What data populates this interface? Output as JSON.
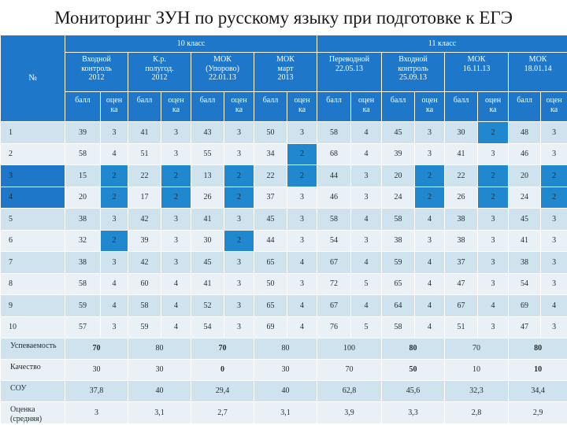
{
  "title": "Мониторинг ЗУН по русскому языку при подготовке к ЕГЭ",
  "header": {
    "number_label": "№",
    "class10": "10 класс",
    "class11": "11 класс",
    "tests": [
      {
        "lines": [
          "Входной",
          "контроль",
          "2012"
        ]
      },
      {
        "lines": [
          "К.р.",
          "полугод.",
          "2012"
        ]
      },
      {
        "lines": [
          "МОК",
          "(Упорово)",
          "22.01.13"
        ]
      },
      {
        "lines": [
          "МОК",
          "март",
          "2013"
        ]
      },
      {
        "lines": [
          "Переводной",
          "22.05.13"
        ]
      },
      {
        "lines": [
          "Входной",
          "контроль",
          "25.09.13"
        ]
      },
      {
        "lines": [
          "МОК",
          "16.11.13"
        ]
      },
      {
        "lines": [
          "МОК",
          "18.01.14"
        ]
      }
    ],
    "sub_ball": "балл",
    "sub_grade": [
      "оцен",
      "ка"
    ]
  },
  "rows": [
    {
      "num": "1",
      "cells": [
        "39",
        "3",
        "41",
        "3",
        "43",
        "3",
        "50",
        "3",
        "58",
        "4",
        "45",
        "3",
        "30",
        "2",
        "48",
        "3"
      ]
    },
    {
      "num": "2",
      "cells": [
        "58",
        "4",
        "51",
        "3",
        "55",
        "3",
        "34",
        "2",
        "68",
        "4",
        "39",
        "3",
        "41",
        "3",
        "46",
        "3"
      ]
    },
    {
      "num": "3",
      "cells": [
        "15",
        "2",
        "22",
        "2",
        "13",
        "2",
        "22",
        "2",
        "44",
        "3",
        "20",
        "2",
        "22",
        "2",
        "20",
        "2"
      ]
    },
    {
      "num": "4",
      "cells": [
        "20",
        "2",
        "17",
        "2",
        "26",
        "2",
        "37",
        "3",
        "46",
        "3",
        "24",
        "2",
        "26",
        "2",
        "24",
        "2"
      ]
    },
    {
      "num": "5",
      "cells": [
        "38",
        "3",
        "42",
        "3",
        "41",
        "3",
        "45",
        "3",
        "58",
        "4",
        "58",
        "4",
        "38",
        "3",
        "45",
        "3"
      ]
    },
    {
      "num": "6",
      "cells": [
        "32",
        "2",
        "39",
        "3",
        "30",
        "2",
        "44",
        "3",
        "54",
        "3",
        "38",
        "3",
        "38",
        "3",
        "41",
        "3"
      ]
    },
    {
      "num": "7",
      "cells": [
        "38",
        "3",
        "42",
        "3",
        "45",
        "3",
        "65",
        "4",
        "67",
        "4",
        "59",
        "4",
        "37",
        "3",
        "38",
        "3"
      ]
    },
    {
      "num": "8",
      "cells": [
        "58",
        "4",
        "60",
        "4",
        "41",
        "3",
        "50",
        "3",
        "72",
        "5",
        "65",
        "4",
        "47",
        "3",
        "54",
        "3"
      ]
    },
    {
      "num": "9",
      "cells": [
        "59",
        "4",
        "58",
        "4",
        "52",
        "3",
        "65",
        "4",
        "67",
        "4",
        "64",
        "4",
        "67",
        "4",
        "69",
        "4"
      ]
    },
    {
      "num": "10",
      "cells": [
        "57",
        "3",
        "59",
        "4",
        "54",
        "3",
        "69",
        "4",
        "76",
        "5",
        "58",
        "4",
        "51",
        "3",
        "47",
        "3"
      ]
    }
  ],
  "summary": [
    {
      "label": "Успеваемость",
      "values": [
        "70",
        "80",
        "70",
        "80",
        "100",
        "80",
        "70",
        "80"
      ]
    },
    {
      "label": "Качество",
      "values": [
        "30",
        "30",
        "0",
        "30",
        "70",
        "50",
        "10",
        "10"
      ]
    },
    {
      "label": "СОУ",
      "values": [
        "37,8",
        "40",
        "29,4",
        "40",
        "62,8",
        "45,6",
        "32,3",
        "34,4"
      ]
    },
    {
      "label": "Оценка (средняя)",
      "values": [
        "3",
        "3,1",
        "2,7",
        "3,1",
        "3,9",
        "3,3",
        "2,8",
        "2,9"
      ]
    }
  ]
}
